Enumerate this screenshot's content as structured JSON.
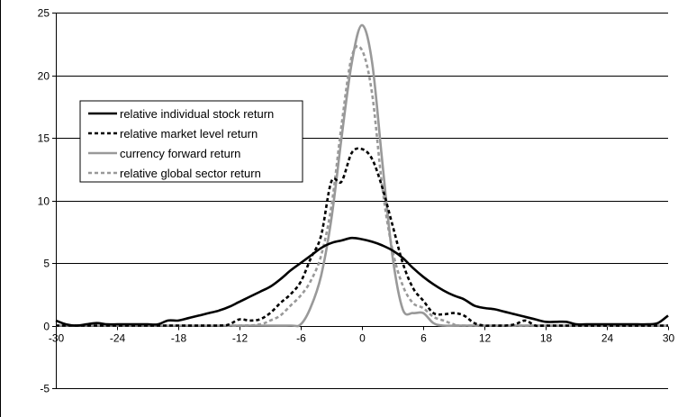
{
  "chart_data": {
    "type": "line",
    "title": "",
    "xlabel": "",
    "ylabel": "",
    "xlim": [
      -30,
      30
    ],
    "ylim": [
      -5,
      25
    ],
    "x_ticks": [
      -30,
      -24,
      -18,
      -12,
      -6,
      0,
      6,
      12,
      18,
      24,
      30
    ],
    "y_ticks": [
      -5,
      0,
      5,
      10,
      15,
      20,
      25
    ],
    "grid": {
      "horizontal": true,
      "vertical": false
    },
    "legend_position": "upper-left",
    "series": [
      {
        "name": "relative individual stock return",
        "color": "#000000",
        "dash": "solid",
        "x": [
          -30,
          -29,
          -28,
          -27,
          -26,
          -25,
          -24,
          -23,
          -22,
          -21,
          -20,
          -19,
          -18,
          -17,
          -16,
          -15,
          -14,
          -13,
          -12,
          -11,
          -10,
          -9,
          -8,
          -7,
          -6,
          -5,
          -4,
          -3,
          -2,
          -1,
          0,
          1,
          2,
          3,
          4,
          5,
          6,
          7,
          8,
          9,
          10,
          11,
          12,
          13,
          14,
          15,
          16,
          17,
          18,
          19,
          20,
          21,
          22,
          23,
          24,
          25,
          26,
          27,
          28,
          29,
          30
        ],
        "y": [
          0.4,
          0.1,
          0.0,
          0.1,
          0.2,
          0.1,
          0.1,
          0.1,
          0.1,
          0.1,
          0.1,
          0.4,
          0.4,
          0.6,
          0.8,
          1.0,
          1.2,
          1.5,
          1.9,
          2.3,
          2.7,
          3.1,
          3.7,
          4.4,
          5.0,
          5.6,
          6.2,
          6.6,
          6.8,
          7.0,
          6.9,
          6.7,
          6.4,
          6.0,
          5.4,
          4.6,
          3.9,
          3.3,
          2.8,
          2.4,
          2.1,
          1.6,
          1.4,
          1.3,
          1.1,
          0.9,
          0.7,
          0.5,
          0.3,
          0.3,
          0.3,
          0.1,
          0.1,
          0.1,
          0.1,
          0.1,
          0.1,
          0.1,
          0.1,
          0.2,
          0.8
        ]
      },
      {
        "name": "relative market level return",
        "color": "#000000",
        "dash": "dashed",
        "x": [
          -30,
          -26,
          -22,
          -18,
          -14,
          -13,
          -12,
          -11,
          -10,
          -9,
          -8,
          -7,
          -6,
          -5,
          -4,
          -3,
          -2,
          -1,
          0,
          1,
          2,
          3,
          4,
          5,
          6,
          7,
          8,
          9,
          10,
          11,
          12,
          13,
          14,
          15,
          16,
          17,
          18,
          22,
          26,
          30
        ],
        "y": [
          0,
          0,
          0,
          0,
          0,
          0.1,
          0.5,
          0.4,
          0.5,
          1.0,
          1.8,
          2.5,
          3.5,
          5.4,
          7.2,
          11.5,
          11.5,
          13.8,
          14.1,
          13.3,
          11.0,
          8.0,
          5.0,
          3.0,
          2.0,
          1.0,
          0.9,
          1.0,
          0.8,
          0.2,
          0.0,
          0.0,
          0.0,
          0.1,
          0.4,
          0.0,
          0.0,
          0,
          0,
          0
        ]
      },
      {
        "name": "currency forward return",
        "color": "#999999",
        "dash": "solid",
        "x": [
          -30,
          -20,
          -10,
          -7,
          -6,
          -5,
          -4,
          -3,
          -2,
          -1,
          0,
          1,
          2,
          3,
          4,
          5,
          6,
          7,
          8,
          10,
          20,
          30
        ],
        "y": [
          0,
          0,
          0,
          0,
          0.1,
          1.5,
          4.0,
          8.5,
          15.0,
          21.0,
          24.0,
          21.0,
          13.0,
          5.5,
          1.3,
          1.0,
          1.0,
          0.2,
          0,
          0,
          0,
          0
        ]
      },
      {
        "name": "relative global sector return",
        "color": "#999999",
        "dash": "dashed",
        "x": [
          -30,
          -20,
          -12,
          -10,
          -9,
          -8,
          -7,
          -6,
          -5,
          -4,
          -3,
          -2,
          -1,
          0,
          1,
          2,
          3,
          4,
          5,
          6,
          7,
          8,
          9,
          10,
          20,
          30
        ],
        "y": [
          0,
          0,
          0,
          0.1,
          0.4,
          0.8,
          1.6,
          2.4,
          3.6,
          5.6,
          9.5,
          16.0,
          21.5,
          22.0,
          18.5,
          11.0,
          6.0,
          3.2,
          1.8,
          1.4,
          0.7,
          0.4,
          0.1,
          0,
          0,
          0
        ]
      }
    ]
  }
}
